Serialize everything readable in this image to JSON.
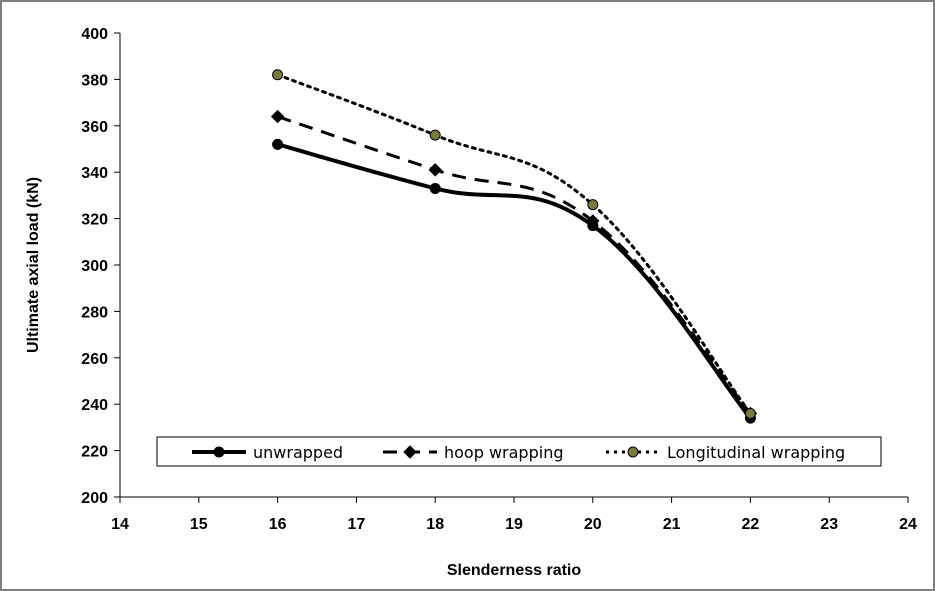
{
  "chart_data": {
    "type": "line",
    "xlabel": "Slenderness ratio",
    "ylabel": "Ultimate axial load (kN)",
    "xlim": [
      14,
      24
    ],
    "ylim": [
      200,
      400
    ],
    "x_ticks": [
      14,
      15,
      16,
      17,
      18,
      19,
      20,
      21,
      22,
      23,
      24
    ],
    "y_ticks": [
      200,
      220,
      240,
      260,
      280,
      300,
      320,
      340,
      360,
      380,
      400
    ],
    "grid": false,
    "legend_position": "bottom",
    "series": [
      {
        "name": "unwrapped",
        "x": [
          16,
          18,
          20,
          22
        ],
        "values": [
          352,
          333,
          317,
          234
        ],
        "line_style": "solid",
        "marker": "circle",
        "color": "#000000",
        "marker_fill": "#000000"
      },
      {
        "name": "hoop wrapping",
        "x": [
          16,
          18,
          20,
          22
        ],
        "values": [
          364,
          341,
          319,
          236
        ],
        "line_style": "dashed",
        "marker": "diamond",
        "color": "#000000",
        "marker_fill": "#000000"
      },
      {
        "name": "Longitudinal wrapping",
        "x": [
          16,
          18,
          20,
          22
        ],
        "values": [
          382,
          356,
          326,
          236
        ],
        "line_style": "dotted",
        "marker": "circle",
        "color": "#000000",
        "marker_fill": "#7a7a3a"
      }
    ]
  }
}
